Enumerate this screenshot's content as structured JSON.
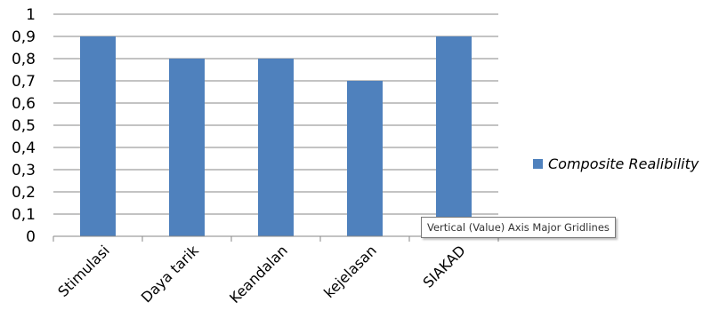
{
  "chart_data": {
    "type": "bar",
    "categories": [
      "Stimulasi",
      "Daya tarik",
      "Keandalan",
      "kejelasan",
      "SIAKAD"
    ],
    "series": [
      {
        "name": "Composite Realibility",
        "values": [
          0.9,
          0.8,
          0.8,
          0.7,
          0.9
        ]
      }
    ],
    "ylim": [
      0,
      1
    ],
    "y_ticks": [
      "0",
      "0,1",
      "0,2",
      "0,3",
      "0,4",
      "0,5",
      "0,6",
      "0,7",
      "0,8",
      "0,9",
      "1"
    ],
    "grid": true,
    "legend_position": "right",
    "bar_color": "#4f81bd",
    "grid_color": "#878787"
  },
  "tooltip": {
    "text": "Vertical (Value) Axis Major Gridlines"
  }
}
